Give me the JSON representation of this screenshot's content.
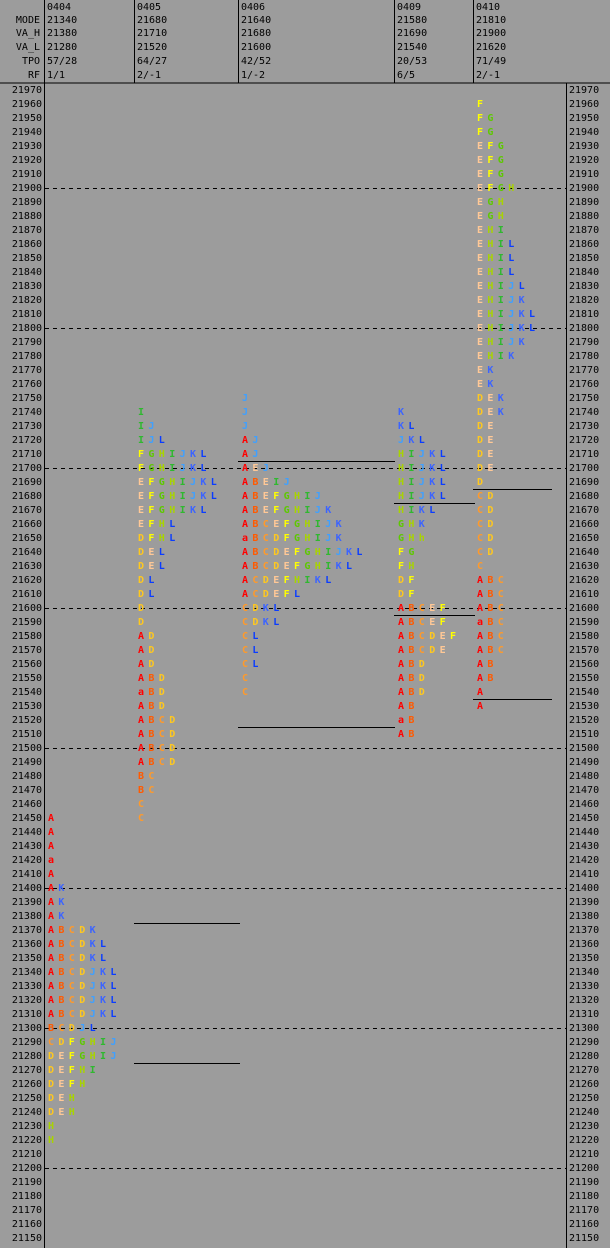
{
  "header": {
    "labels": [
      "MODE",
      "VA_H",
      "VA_L",
      "TPO",
      "RF"
    ]
  },
  "price_axis": {
    "ylim": [
      21150,
      21970
    ],
    "ticks": [
      21970,
      21960,
      21950,
      21940,
      21930,
      21920,
      21910,
      21900,
      21890,
      21880,
      21870,
      21860,
      21850,
      21840,
      21830,
      21820,
      21810,
      21800,
      21790,
      21780,
      21770,
      21760,
      21750,
      21740,
      21730,
      21720,
      21710,
      21700,
      21690,
      21680,
      21670,
      21660,
      21650,
      21640,
      21630,
      21620,
      21610,
      21600,
      21590,
      21580,
      21570,
      21560,
      21550,
      21540,
      21530,
      21520,
      21510,
      21500,
      21490,
      21480,
      21470,
      21460,
      21450,
      21440,
      21430,
      21420,
      21410,
      21400,
      21390,
      21380,
      21370,
      21360,
      21350,
      21340,
      21330,
      21320,
      21310,
      21300,
      21290,
      21280,
      21270,
      21260,
      21250,
      21240,
      21230,
      21220,
      21210,
      21200,
      21190,
      21180,
      21170,
      21160,
      21150
    ],
    "grid_lines": [
      21900,
      21800,
      21700,
      21600,
      21500,
      21400,
      21300,
      21200
    ]
  },
  "letter_colors": {
    "A": "#ff0000",
    "a": "#ff0000",
    "B": "#ff5a00",
    "C": "#ff9a2a",
    "D": "#ffc81e",
    "E": "#ffc896",
    "F": "#ffff00",
    "G": "#5ec800",
    "H": "#a8d400",
    "h": "#a8d400",
    "I": "#2fb82f",
    "J": "#3fa0ff",
    "K": "#3c64ff",
    "L": "#0a3cff"
  },
  "sessions": [
    {
      "date": "0404",
      "mode": 21340,
      "va_h": 21380,
      "va_l": 21280,
      "tpo": "57/28",
      "rf": "1/1",
      "profile": [
        [
          21450,
          "A"
        ],
        [
          21440,
          "A"
        ],
        [
          21430,
          "A"
        ],
        [
          21420,
          "a"
        ],
        [
          21410,
          "A"
        ],
        [
          21400,
          "AK"
        ],
        [
          21390,
          "AK"
        ],
        [
          21380,
          "AK"
        ],
        [
          21370,
          "ABCDK"
        ],
        [
          21360,
          "ABCDKL"
        ],
        [
          21350,
          "ABCDKL"
        ],
        [
          21340,
          "ABCDJKL"
        ],
        [
          21330,
          "ABCDJKL"
        ],
        [
          21320,
          "ABCDJKL"
        ],
        [
          21310,
          "ABCDJKL"
        ],
        [
          21300,
          "BCDJL"
        ],
        [
          21290,
          "CDFGHIJ"
        ],
        [
          21280,
          "DEFGHIJ"
        ],
        [
          21270,
          "DEFHI"
        ],
        [
          21260,
          "DEFH"
        ],
        [
          21250,
          "DEH"
        ],
        [
          21240,
          "DEH"
        ],
        [
          21230,
          "H"
        ],
        [
          21220,
          "H"
        ]
      ]
    },
    {
      "date": "0405",
      "mode": 21680,
      "va_h": 21710,
      "va_l": 21520,
      "tpo": "64/27",
      "rf": "2/-1",
      "profile": [
        [
          21740,
          "I"
        ],
        [
          21730,
          "IJ"
        ],
        [
          21720,
          "IJL"
        ],
        [
          21710,
          "FGHIJKL"
        ],
        [
          21700,
          "FGHIJKL"
        ],
        [
          21690,
          "EFGHIJKL"
        ],
        [
          21680,
          "EFGHIJKL"
        ],
        [
          21670,
          "EFGHIKL"
        ],
        [
          21660,
          "EFHL"
        ],
        [
          21650,
          "DFHL"
        ],
        [
          21640,
          "DEL"
        ],
        [
          21630,
          "DEL"
        ],
        [
          21620,
          "DL"
        ],
        [
          21610,
          "DL"
        ],
        [
          21600,
          "D"
        ],
        [
          21590,
          "D"
        ],
        [
          21580,
          "AD"
        ],
        [
          21570,
          "AD"
        ],
        [
          21560,
          "AD"
        ],
        [
          21550,
          "ABD"
        ],
        [
          21540,
          "aBD"
        ],
        [
          21530,
          "ABD"
        ],
        [
          21520,
          "ABCD"
        ],
        [
          21510,
          "ABCD"
        ],
        [
          21500,
          "ABCD"
        ],
        [
          21490,
          "ABCD"
        ],
        [
          21480,
          "BC"
        ],
        [
          21470,
          "BC"
        ],
        [
          21460,
          "C"
        ],
        [
          21450,
          "C"
        ]
      ]
    },
    {
      "date": "0406",
      "mode": 21640,
      "va_h": 21680,
      "va_l": 21600,
      "tpo": "42/52",
      "rf": "1/-2",
      "profile": [
        [
          21750,
          "J"
        ],
        [
          21740,
          "J"
        ],
        [
          21730,
          "J"
        ],
        [
          21720,
          "AJ"
        ],
        [
          21710,
          "AJ"
        ],
        [
          21700,
          "AEJ"
        ],
        [
          21690,
          "ABEIJ"
        ],
        [
          21680,
          "ABEFGHIJ"
        ],
        [
          21670,
          "ABEFGHIJK"
        ],
        [
          21660,
          "ABCEFGHIJK"
        ],
        [
          21650,
          "aBCDFGHIJK"
        ],
        [
          21640,
          "ABCDEFGHIJKL"
        ],
        [
          21630,
          "ABCDEFGHIKL"
        ],
        [
          21620,
          "ACDEFHIKL"
        ],
        [
          21610,
          "ACDEFL"
        ],
        [
          21600,
          "CDKL"
        ],
        [
          21590,
          "CDKL"
        ],
        [
          21580,
          "CL"
        ],
        [
          21570,
          "CL"
        ],
        [
          21560,
          "CL"
        ],
        [
          21550,
          "C"
        ],
        [
          21540,
          "C"
        ]
      ]
    },
    {
      "date": "0409",
      "mode": 21580,
      "va_h": 21690,
      "va_l": 21540,
      "tpo": "20/53",
      "rf": "6/5",
      "profile": [
        [
          21740,
          "K"
        ],
        [
          21730,
          "KL"
        ],
        [
          21720,
          "JKL"
        ],
        [
          21710,
          "HIJKL"
        ],
        [
          21700,
          "HIJKL"
        ],
        [
          21690,
          "HIJKL"
        ],
        [
          21680,
          "HIJKL"
        ],
        [
          21670,
          "HIKL"
        ],
        [
          21660,
          "GHK"
        ],
        [
          21650,
          "GHh"
        ],
        [
          21640,
          "FG"
        ],
        [
          21630,
          "FH"
        ],
        [
          21620,
          "DF"
        ],
        [
          21610,
          "DF"
        ],
        [
          21600,
          "ABCEF"
        ],
        [
          21590,
          "ABCEF"
        ],
        [
          21580,
          "ABCDEF"
        ],
        [
          21570,
          "ABCDE"
        ],
        [
          21560,
          "ABD"
        ],
        [
          21550,
          "ABD"
        ],
        [
          21540,
          "ABD"
        ],
        [
          21530,
          "AB"
        ],
        [
          21520,
          "aB"
        ],
        [
          21510,
          "AB"
        ]
      ]
    },
    {
      "date": "0410",
      "mode": 21810,
      "va_h": 21900,
      "va_l": 21620,
      "tpo": "71/49",
      "rf": "2/-1",
      "profile": [
        [
          21960,
          "F"
        ],
        [
          21950,
          "FG"
        ],
        [
          21940,
          "FG"
        ],
        [
          21930,
          "EFG"
        ],
        [
          21920,
          "EFG"
        ],
        [
          21910,
          "EFG"
        ],
        [
          21900,
          "EFGH"
        ],
        [
          21890,
          "EGH"
        ],
        [
          21880,
          "EGH"
        ],
        [
          21870,
          "EHI"
        ],
        [
          21860,
          "EHIL"
        ],
        [
          21850,
          "EHIL"
        ],
        [
          21840,
          "EHIL"
        ],
        [
          21830,
          "EHIJL"
        ],
        [
          21820,
          "EHIJK"
        ],
        [
          21810,
          "EHIJKL"
        ],
        [
          21800,
          "EHIJKL"
        ],
        [
          21790,
          "EHIJK"
        ],
        [
          21780,
          "EHIK"
        ],
        [
          21770,
          "EK"
        ],
        [
          21760,
          "EK"
        ],
        [
          21750,
          "DEK"
        ],
        [
          21740,
          "DEK"
        ],
        [
          21730,
          "DE"
        ],
        [
          21720,
          "DE"
        ],
        [
          21710,
          "DE"
        ],
        [
          21700,
          "DE"
        ],
        [
          21690,
          "D"
        ],
        [
          21680,
          "CD"
        ],
        [
          21670,
          "CD"
        ],
        [
          21660,
          "CD"
        ],
        [
          21650,
          "CD"
        ],
        [
          21640,
          "CD"
        ],
        [
          21630,
          "C"
        ],
        [
          21620,
          "ABC"
        ],
        [
          21610,
          "ABC"
        ],
        [
          21600,
          "ABC"
        ],
        [
          21590,
          "aBC"
        ],
        [
          21580,
          "ABC"
        ],
        [
          21570,
          "ABC"
        ],
        [
          21560,
          "AB"
        ],
        [
          21550,
          "AB"
        ],
        [
          21540,
          "A"
        ],
        [
          21530,
          "A"
        ]
      ]
    }
  ]
}
